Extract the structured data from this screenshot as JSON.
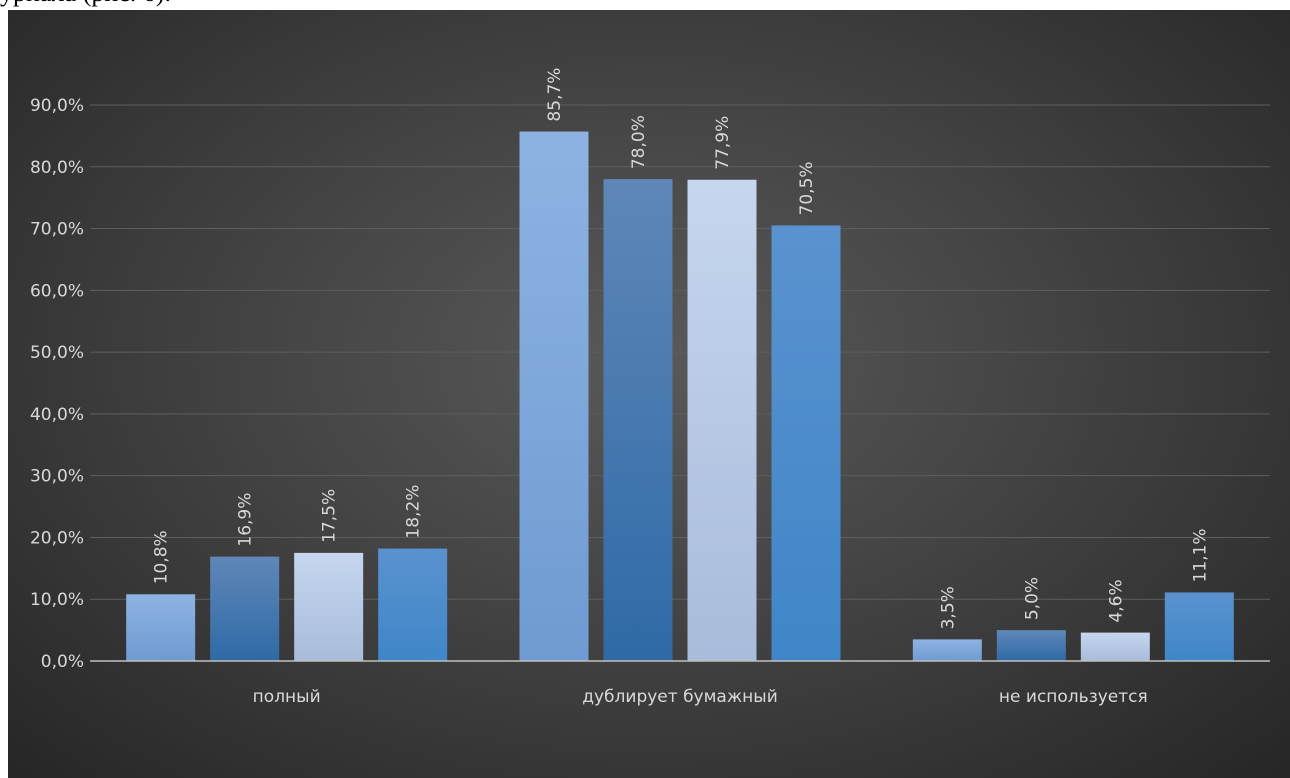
{
  "caption": "урнала (рис. 6).",
  "chart_data": {
    "type": "bar",
    "categories": [
      "полный",
      "дублирует бумажный",
      "не используется"
    ],
    "series": [
      {
        "values": [
          10.8,
          85.7,
          3.5
        ],
        "labels": [
          "10,8%",
          "85,7%",
          "3,5%"
        ]
      },
      {
        "values": [
          16.9,
          78.0,
          5.0
        ],
        "labels": [
          "16,9%",
          "78,0%",
          "5,0%"
        ]
      },
      {
        "values": [
          17.5,
          77.9,
          4.6
        ],
        "labels": [
          "17,5%",
          "77,9%",
          "4,6%"
        ]
      },
      {
        "values": [
          18.2,
          70.5,
          11.1
        ],
        "labels": [
          "18,2%",
          "70,5%",
          "11,1%"
        ]
      }
    ],
    "series_colors": [
      [
        "#8db3e2",
        "#6f9bd2"
      ],
      [
        "#5f87b8",
        "#2f6aa6"
      ],
      [
        "#c6d6ee",
        "#a8bcdb"
      ],
      [
        "#5a92cf",
        "#3f86c8"
      ]
    ],
    "yticks": [
      "0,0%",
      "10,0%",
      "20,0%",
      "30,0%",
      "40,0%",
      "50,0%",
      "60,0%",
      "70,0%",
      "80,0%",
      "90,0%"
    ],
    "ylim": [
      0,
      90
    ],
    "grid": true,
    "legend": "none",
    "xlabel": "",
    "ylabel": ""
  }
}
